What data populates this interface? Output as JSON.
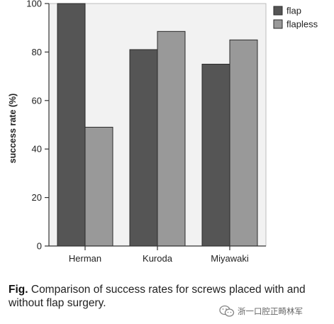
{
  "chart_data": {
    "type": "bar",
    "categories": [
      "Herman",
      "Kuroda",
      "Miyawaki"
    ],
    "series": [
      {
        "name": "flap",
        "values": [
          100,
          81,
          75
        ],
        "color": "#555555"
      },
      {
        "name": "flapless",
        "values": [
          49,
          88.5,
          85
        ],
        "color": "#999999"
      }
    ],
    "ylabel": "success rate (%)",
    "xlabel": "",
    "ylim": [
      0,
      100
    ],
    "yticks": [
      0,
      20,
      40,
      60,
      80,
      100
    ],
    "legend_position": "top-right",
    "grid": false,
    "plot_background": "#f2f2f2"
  },
  "caption": {
    "label": "Fig.",
    "text": " Comparison of success rates for screws placed with and without flap surgery."
  },
  "watermark": {
    "text": "浙一口腔正畸林军",
    "icon": "wechat-icon"
  }
}
